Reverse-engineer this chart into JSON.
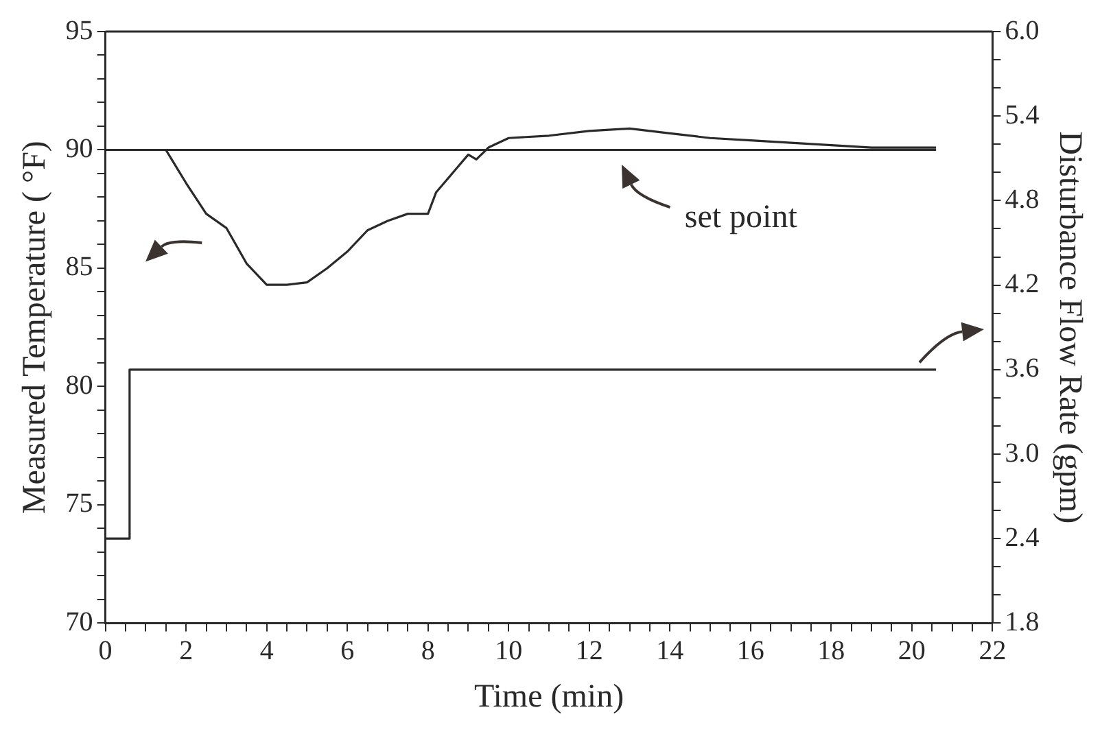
{
  "chart_data": {
    "type": "line",
    "xlabel": "Time (min)",
    "ylabel": "Measured Temperature ( °F)",
    "y2label": "Disturbance Flow Rate (gpm)",
    "series": [
      {
        "type": "line",
        "color": "#2a2a2a",
        "x": [
          0,
          1.5,
          2,
          2.5,
          3,
          3.5,
          4,
          4.5,
          5,
          5.5,
          6,
          6.5,
          7,
          7.5,
          8,
          8.2,
          8.7,
          9,
          9.2,
          9.5,
          10,
          11,
          12,
          13,
          14,
          15,
          16,
          17,
          18,
          19,
          20,
          20.6
        ],
        "values": [
          90,
          90,
          88.6,
          87.3,
          86.7,
          85.2,
          84.3,
          84.3,
          84.4,
          85,
          85.7,
          86.6,
          87,
          87.3,
          87.3,
          88.2,
          89.2,
          89.8,
          89.6,
          90.1,
          90.5,
          90.6,
          90.8,
          90.9,
          90.7,
          90.5,
          90.4,
          90.3,
          90.2,
          90.1,
          90.1,
          90.1
        ]
      },
      {
        "type": "line",
        "color": "#2a2a2a",
        "x": [
          0,
          20.6
        ],
        "values": [
          90,
          90
        ]
      },
      {
        "type": "step",
        "color": "#2a2a2a",
        "axis": "y2",
        "x": [
          0,
          0.6,
          20.6
        ],
        "values": [
          2.4,
          3.6,
          3.6
        ]
      }
    ],
    "xlim": [
      0,
      22
    ],
    "xticks": [
      0,
      {
        "value": 0.5,
        "label": null
      },
      {
        "value": 1,
        "label": null
      },
      {
        "value": 1.5,
        "label": null
      },
      2,
      {
        "value": 2.5,
        "label": null
      },
      {
        "value": 3,
        "label": null
      },
      {
        "value": 3.5,
        "label": null
      },
      4,
      {
        "value": 4.5,
        "label": null
      },
      {
        "value": 5,
        "label": null
      },
      {
        "value": 5.5,
        "label": null
      },
      6,
      {
        "value": 6.5,
        "label": null
      },
      {
        "value": 7,
        "label": null
      },
      {
        "value": 7.5,
        "label": null
      },
      8,
      {
        "value": 8.5,
        "label": null
      },
      {
        "value": 9,
        "label": null
      },
      {
        "value": 9.5,
        "label": null
      },
      10,
      {
        "value": 10.5,
        "label": null
      },
      {
        "value": 11,
        "label": null
      },
      {
        "value": 11.5,
        "label": null
      },
      12,
      {
        "value": 12.5,
        "label": null
      },
      {
        "value": 13,
        "label": null
      },
      {
        "value": 13.5,
        "label": null
      },
      14,
      {
        "value": 14.5,
        "label": null
      },
      {
        "value": 15,
        "label": null
      },
      {
        "value": 15.5,
        "label": null
      },
      16,
      {
        "value": 16.5,
        "label": null
      },
      {
        "value": 17,
        "label": null
      },
      {
        "value": 17.5,
        "label": null
      },
      18,
      {
        "value": 18.5,
        "label": null
      },
      {
        "value": 19,
        "label": null
      },
      {
        "value": 19.5,
        "label": null
      },
      20,
      {
        "value": 20.5,
        "label": null
      },
      {
        "value": 21,
        "label": null
      },
      {
        "value": 21.5,
        "label": null
      },
      22
    ],
    "ylim": [
      70,
      95
    ],
    "yticks": [
      70,
      {
        "value": 71,
        "label": null
      },
      {
        "value": 72,
        "label": null
      },
      {
        "value": 73,
        "label": null
      },
      {
        "value": 74,
        "label": null
      },
      75,
      {
        "value": 76,
        "label": null
      },
      {
        "value": 77,
        "label": null
      },
      {
        "value": 78,
        "label": null
      },
      {
        "value": 79,
        "label": null
      },
      80,
      {
        "value": 81,
        "label": null
      },
      {
        "value": 82,
        "label": null
      },
      {
        "value": 83,
        "label": null
      },
      {
        "value": 84,
        "label": null
      },
      85,
      {
        "value": 86,
        "label": null
      },
      {
        "value": 87,
        "label": null
      },
      {
        "value": 88,
        "label": null
      },
      {
        "value": 89,
        "label": null
      },
      90,
      {
        "value": 91,
        "label": null
      },
      {
        "value": 92,
        "label": null
      },
      {
        "value": 93,
        "label": null
      },
      {
        "value": 94,
        "label": null
      },
      95
    ],
    "y2lim": [
      1.8,
      6.0
    ],
    "y2ticks": [
      1.8,
      {
        "value": 2.0,
        "label": null
      },
      {
        "value": 2.2,
        "label": null
      },
      2.4,
      {
        "value": 2.6,
        "label": null
      },
      {
        "value": 2.8,
        "label": null
      },
      {
        "value": 3.0,
        "label": "3.0"
      },
      {
        "value": 3.2,
        "label": null
      },
      {
        "value": 3.4,
        "label": null
      },
      3.6,
      {
        "value": 3.8,
        "label": null
      },
      {
        "value": 4.0,
        "label": null
      },
      4.2,
      {
        "value": 4.4,
        "label": null
      },
      {
        "value": 4.6,
        "label": null
      },
      4.8,
      {
        "value": 5.0,
        "label": null
      },
      {
        "value": 5.2,
        "label": null
      },
      5.4,
      {
        "value": 5.6,
        "label": null
      },
      {
        "value": 5.8,
        "label": null
      },
      {
        "value": 6.0,
        "label": "6.0"
      }
    ],
    "grid": false,
    "legend": false,
    "marker": "none",
    "line_style": "solid",
    "annotations": [
      {
        "text": "set point",
        "x": 12.8,
        "y": 90
      }
    ]
  }
}
